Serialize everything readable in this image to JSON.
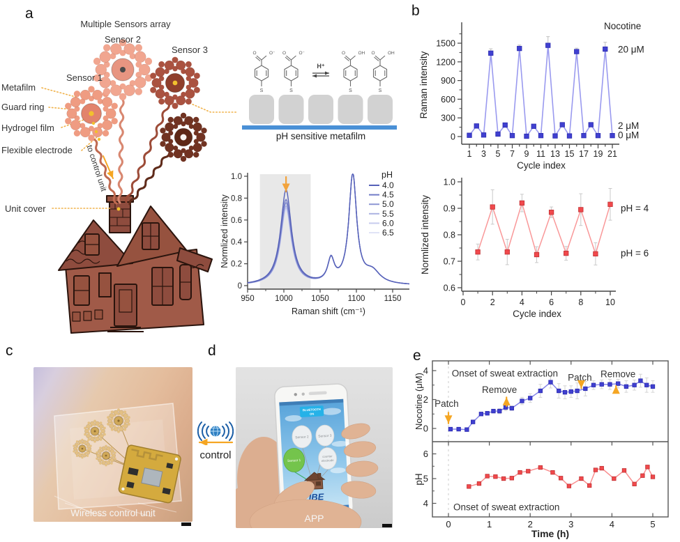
{
  "figure": {
    "panel_labels": {
      "a": "a",
      "b": "b",
      "c": "c",
      "d": "d",
      "e": "e"
    }
  },
  "panel_a": {
    "title": "Multiple Sensors array",
    "sensor_labels": [
      "Sensor 1",
      "Sensor 2",
      "Sensor 3"
    ],
    "part_labels": {
      "metafilm": "Metafilm",
      "guard_ring": "Guard ring",
      "hydrogel": "Hydrogel film",
      "electrode": "Flexible electrode",
      "unit_cover": "Unit cover",
      "to_control": "to control unit"
    },
    "chem": {
      "hplus": "H⁺",
      "s": "S",
      "o": "O",
      "o_minus": "O⁻",
      "oh": "OH",
      "caption": "pH sensitive metafilm"
    },
    "colors": {
      "sensor1": "#ef9c82",
      "sensor2": "#f1a690",
      "sensor3": "#aa5240",
      "sensor4": "#713322",
      "house": "#a05a48",
      "accent_orange": "#f5a623",
      "metafilm_blue": "#4a90d6"
    }
  },
  "panel_c": {
    "caption": "Wireless control unit"
  },
  "panel_d": {
    "caption": "APP",
    "screen": {
      "bluetooth_line1": "BLUETOOTH",
      "bluetooth_line2": "ON",
      "balloons": [
        "Sensor 2",
        "Sensor 3",
        "Sensor 1",
        "counter electrode"
      ],
      "logo": "IBE",
      "logo_sub": "Zhejiang University",
      "nav": [
        "◁",
        "○",
        "□"
      ]
    }
  },
  "between_cd": {
    "label": "control"
  },
  "chart_data": [
    {
      "id": "raman-spectra",
      "type": "line",
      "xlabel": "Raman shift (cm⁻¹)",
      "ylabel": "Normlized intensity",
      "xlim": [
        950,
        1173
      ],
      "ylim": [
        0,
        1.05
      ],
      "xticks": [
        950,
        1000,
        1050,
        1100,
        1150
      ],
      "yticks": [
        0,
        0.2,
        0.4,
        0.6,
        0.8,
        1.0
      ],
      "legend_title": "pH",
      "legend_position": "top-right",
      "shaded_band": [
        967,
        1037
      ],
      "arrow_x": 1003,
      "series": [
        {
          "name": "4.0",
          "color": "#5560b8",
          "peak1003": 0.87
        },
        {
          "name": "4.5",
          "color": "#707ac7",
          "peak1003": 0.78
        },
        {
          "name": "5.0",
          "color": "#8d96d4",
          "peak1003": 0.75
        },
        {
          "name": "5.5",
          "color": "#abb2e1",
          "peak1003": 0.72
        },
        {
          "name": "6.0",
          "color": "#c7cbee",
          "peak1003": 0.7
        },
        {
          "name": "6.5",
          "color": "#e0e3f6",
          "peak1003": 0.68
        }
      ],
      "main_peak": {
        "center": 1003,
        "half_width": 9
      },
      "common_peaks": [
        {
          "center": 1065,
          "half_width": 5.5,
          "height": 0.21
        },
        {
          "center": 1095,
          "half_width": 6.5,
          "height": 1.0
        },
        {
          "center": 1122,
          "half_width": 13,
          "height": 0.11
        }
      ]
    },
    {
      "id": "nicotine-cycles",
      "type": "line",
      "xlabel": "Cycle index",
      "ylabel": "Raman intensity",
      "legend_note": "Nocotine",
      "x": [
        1,
        2,
        3,
        4,
        5,
        6,
        7,
        8,
        9,
        10,
        11,
        12,
        13,
        14,
        15,
        16,
        17,
        18,
        19,
        20,
        21
      ],
      "values": [
        20,
        170,
        25,
        1340,
        40,
        185,
        15,
        1415,
        5,
        165,
        15,
        1465,
        10,
        190,
        10,
        1365,
        15,
        190,
        15,
        1405,
        15
      ],
      "errors": [
        0,
        0,
        0,
        70,
        0,
        0,
        0,
        55,
        0,
        0,
        0,
        140,
        0,
        0,
        0,
        55,
        0,
        0,
        0,
        110,
        0
      ],
      "xticks": [
        1,
        3,
        5,
        7,
        9,
        11,
        13,
        15,
        17,
        19,
        21
      ],
      "yticks": [
        0,
        300,
        600,
        900,
        1200,
        1500
      ],
      "ylim": [
        -120,
        1680
      ],
      "right_labels": [
        {
          "text": "20 μM",
          "v": 1400
        },
        {
          "text": "2 μM",
          "v": 175
        },
        {
          "text": "0 μM",
          "v": 25
        }
      ],
      "marker_color": "#4040d0",
      "line_color": "#9a9aef"
    },
    {
      "id": "ph-cycles",
      "type": "line",
      "xlabel": "Cycle index",
      "ylabel": "Normlized intensity",
      "x": [
        1,
        2,
        3,
        4,
        5,
        6,
        7,
        8,
        9,
        10
      ],
      "values": [
        0.735,
        0.905,
        0.735,
        0.92,
        0.725,
        0.885,
        0.73,
        0.895,
        0.728,
        0.915
      ],
      "errors": [
        0.03,
        0.065,
        0.048,
        0.033,
        0.03,
        0.02,
        0.026,
        0.06,
        0.042,
        0.06
      ],
      "xticks": [
        0,
        2,
        4,
        6,
        8,
        10
      ],
      "yticks": [
        0.6,
        0.7,
        0.8,
        0.9,
        1.0
      ],
      "ylim": [
        0.55,
        1.04
      ],
      "right_labels": [
        {
          "text": "pH = 4",
          "v": 0.9
        },
        {
          "text": "pH = 6",
          "v": 0.73
        }
      ],
      "marker_color": "#f1494c",
      "line_color": "#f99899"
    },
    {
      "id": "sweat-nicotine",
      "type": "line",
      "ylabel": "Nocotine (μM)",
      "x": [
        0.05,
        0.25,
        0.45,
        0.6,
        0.8,
        0.95,
        1.1,
        1.25,
        1.4,
        1.55,
        1.8,
        2.0,
        2.25,
        2.5,
        2.7,
        2.85,
        3.0,
        3.15,
        3.35,
        3.55,
        3.75,
        3.95,
        4.15,
        4.35,
        4.55,
        4.7,
        4.85,
        5.0
      ],
      "values": [
        -0.05,
        -0.05,
        -0.08,
        0.45,
        1.0,
        1.05,
        1.2,
        1.2,
        1.45,
        1.4,
        1.9,
        2.1,
        2.6,
        3.2,
        2.6,
        2.5,
        2.55,
        2.6,
        2.75,
        3.0,
        3.05,
        3.05,
        3.1,
        2.9,
        3.0,
        3.3,
        3.0,
        2.9
      ],
      "errors": [
        0.05,
        0.05,
        0.05,
        0.08,
        0.1,
        0.1,
        0.12,
        0.18,
        0.22,
        0.15,
        0.25,
        0.3,
        0.45,
        0.4,
        0.5,
        0.45,
        0.4,
        0.55,
        0.5,
        0.3,
        0.3,
        0.35,
        0.3,
        0.4,
        0.35,
        0.45,
        0.5,
        0.4
      ],
      "yticks": [
        0,
        2,
        4
      ],
      "annotations": [
        {
          "text": "Onset of sweat extraction",
          "t": 0.08,
          "v": 3.6
        },
        {
          "text": "Patch",
          "t": -0.34,
          "v": 1.5
        },
        {
          "text": "Remove",
          "t": 0.82,
          "v": 2.45
        },
        {
          "text": "Patch",
          "t": 2.92,
          "v": 3.3
        },
        {
          "text": "Remove",
          "t": 3.72,
          "v": 3.55
        }
      ],
      "arrows": [
        {
          "dir": "down",
          "t": 0.0,
          "from": 1.1,
          "to": 0.35
        },
        {
          "dir": "up",
          "t": 1.42,
          "from": 1.55,
          "to": 2.15
        },
        {
          "dir": "down",
          "t": 3.25,
          "from": 3.05,
          "to": 2.78
        },
        {
          "dir": "up",
          "t": 4.1,
          "from": 2.5,
          "to": 2.95
        }
      ],
      "marker_color": "#4040d0",
      "line_color": "#8585e8"
    },
    {
      "id": "sweat-ph",
      "type": "line",
      "ylabel": "pH",
      "xlabel": "Time (h)",
      "x": [
        0.5,
        0.75,
        0.95,
        1.15,
        1.35,
        1.55,
        1.75,
        1.95,
        2.25,
        2.55,
        2.75,
        2.95,
        3.25,
        3.45,
        3.6,
        3.75,
        4.05,
        4.3,
        4.55,
        4.75,
        4.87,
        5.0
      ],
      "values": [
        4.68,
        4.8,
        5.1,
        5.08,
        5.0,
        5.02,
        5.25,
        5.3,
        5.45,
        5.25,
        5.02,
        4.7,
        5.0,
        4.72,
        5.35,
        5.42,
        5.0,
        5.33,
        4.78,
        5.12,
        5.47,
        5.07
      ],
      "yticks": [
        4,
        5,
        6
      ],
      "xticks": [
        0,
        1,
        2,
        3,
        4,
        5
      ],
      "annotations": [
        {
          "text": "Onset of sweat extraction",
          "t": 0.12,
          "v": 3.72
        }
      ],
      "marker_color": "#f1494c",
      "line_color": "#f98f90"
    }
  ]
}
